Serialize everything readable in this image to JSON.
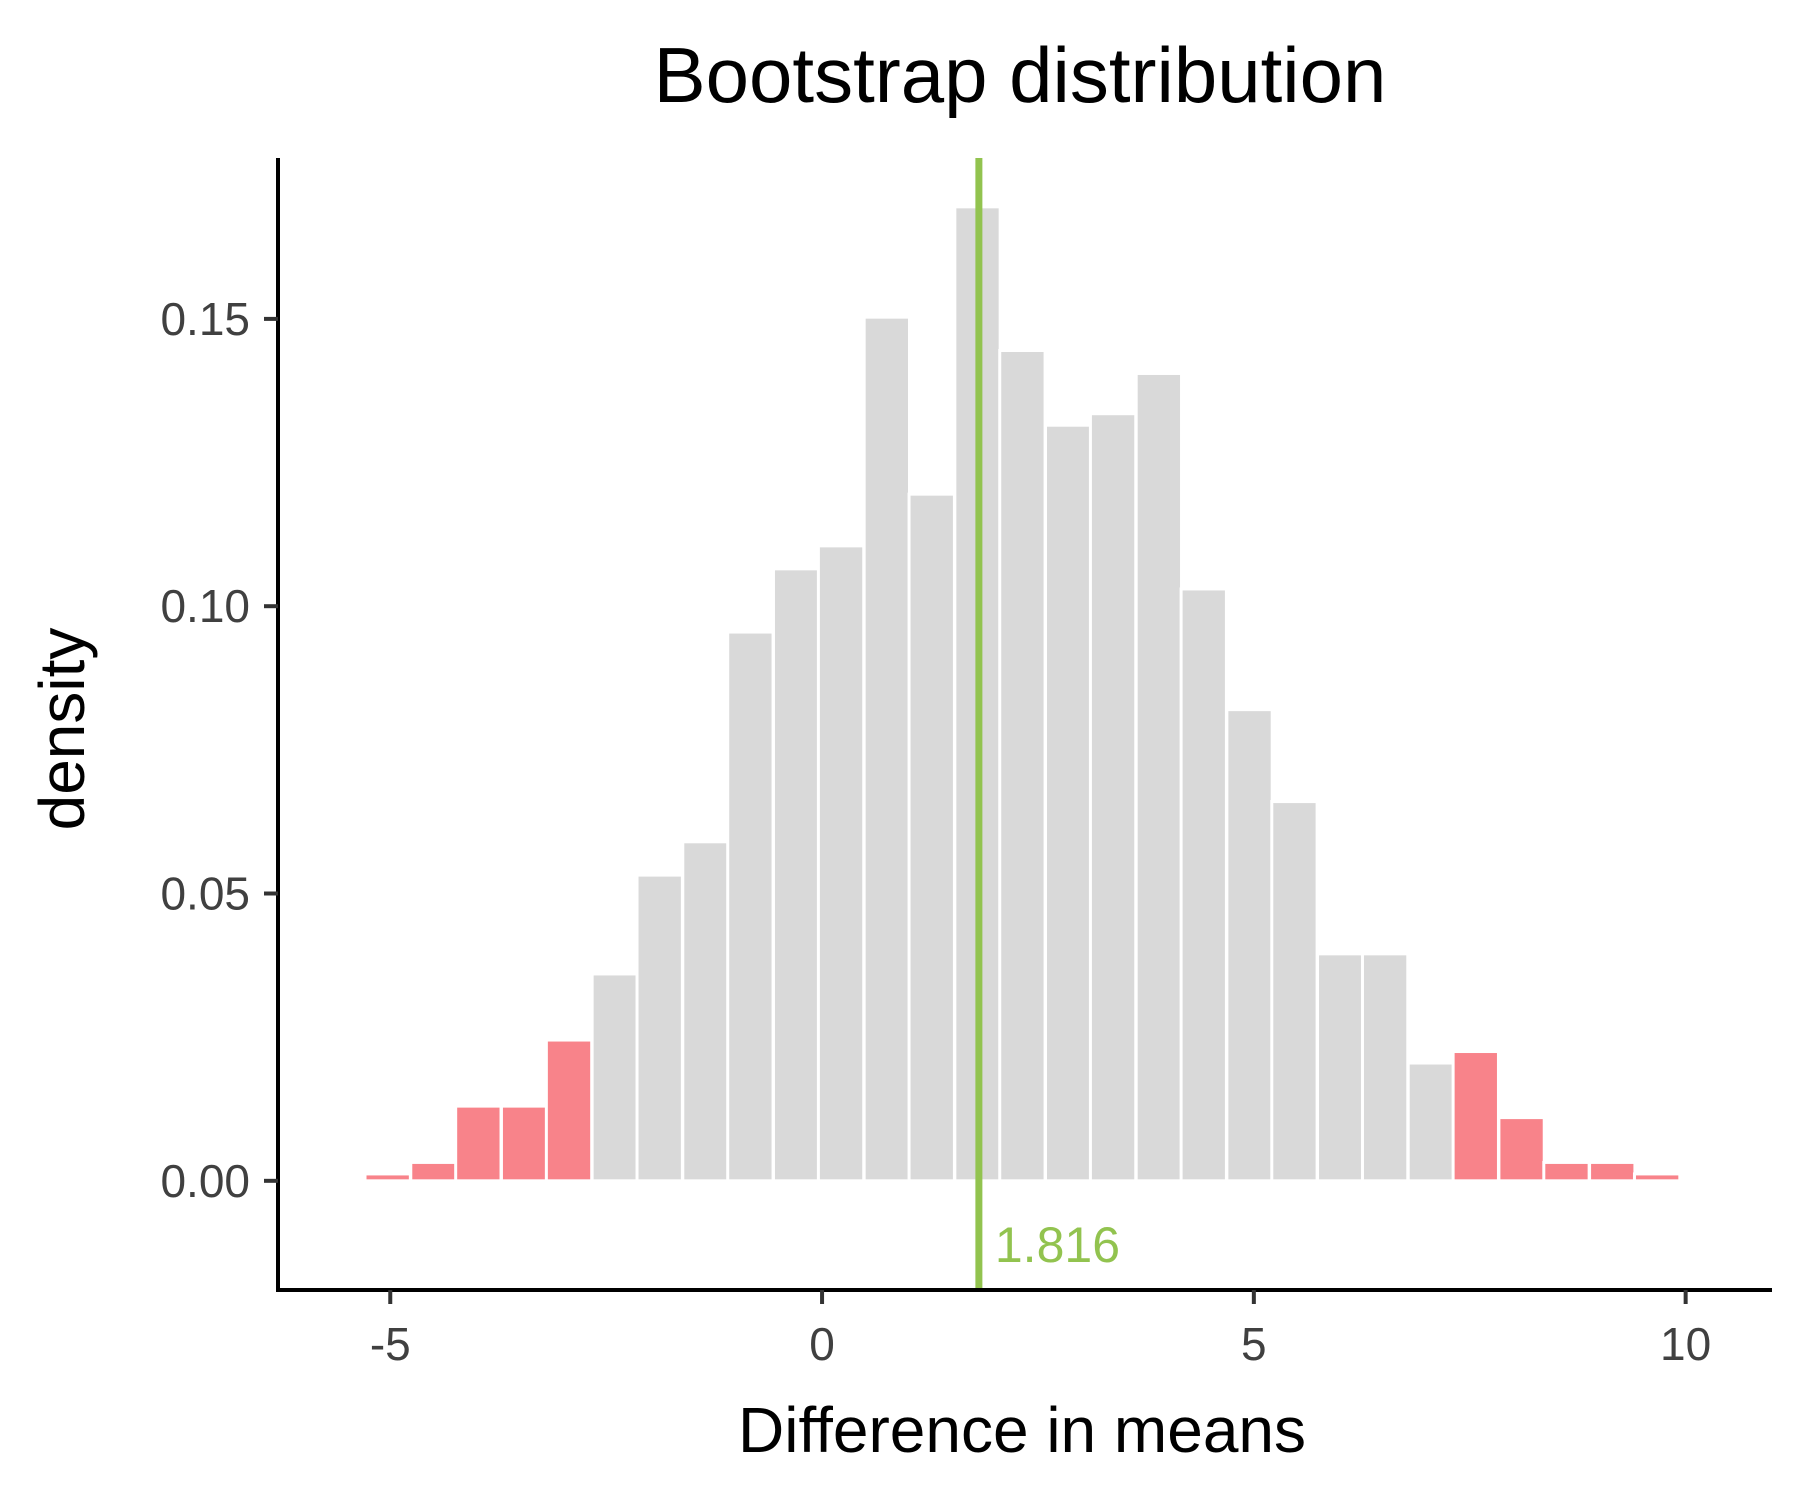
{
  "chart_data": {
    "type": "bar",
    "title": "Bootstrap distribution",
    "xlabel": "Difference in means",
    "ylabel": "density",
    "xlim": [
      -6.3,
      11.0
    ],
    "ylim": [
      -0.019,
      0.178
    ],
    "x_ticks": [
      -5,
      0,
      5,
      10
    ],
    "x_tick_labels": [
      "-5",
      "0",
      "5",
      "10"
    ],
    "y_ticks": [
      0.0,
      0.05,
      0.1,
      0.15
    ],
    "y_tick_labels": [
      "0.00",
      "0.05",
      "0.10",
      "0.15"
    ],
    "grid": false,
    "legend": "none",
    "bin_width": 0.525,
    "bin_centers": [
      -5.03,
      -4.5,
      -3.98,
      -3.45,
      -2.93,
      -2.4,
      -1.88,
      -1.35,
      -0.83,
      -0.3,
      0.22,
      0.75,
      1.27,
      1.8,
      2.32,
      2.85,
      3.37,
      3.9,
      4.42,
      4.95,
      5.47,
      6.0,
      6.52,
      7.05,
      7.57,
      8.1,
      8.62,
      9.15,
      9.67
    ],
    "series": [
      {
        "values": [
          0.0012,
          0.0032,
          0.013,
          0.013,
          0.0245,
          0.036,
          0.0532,
          0.059,
          0.0955,
          0.1065,
          0.1105,
          0.1503,
          0.1195,
          0.1695,
          0.1445,
          0.1315,
          0.1335,
          0.1405,
          0.103,
          0.082,
          0.066,
          0.0395,
          0.0395,
          0.0205,
          0.0225,
          0.011,
          0.0032,
          0.0032,
          0.0012
        ],
        "tail": [
          true,
          true,
          true,
          true,
          true,
          false,
          false,
          false,
          false,
          false,
          false,
          false,
          false,
          false,
          false,
          false,
          false,
          false,
          false,
          false,
          false,
          false,
          false,
          false,
          true,
          true,
          true,
          true,
          true
        ]
      }
    ],
    "reference_line": {
      "x": 1.816,
      "label": "1.816"
    },
    "colors": {
      "bar_fill": "#d9d9d9",
      "tail_fill": "#f8838a",
      "reference_line": "#92c34f",
      "axis": "#000000"
    }
  }
}
